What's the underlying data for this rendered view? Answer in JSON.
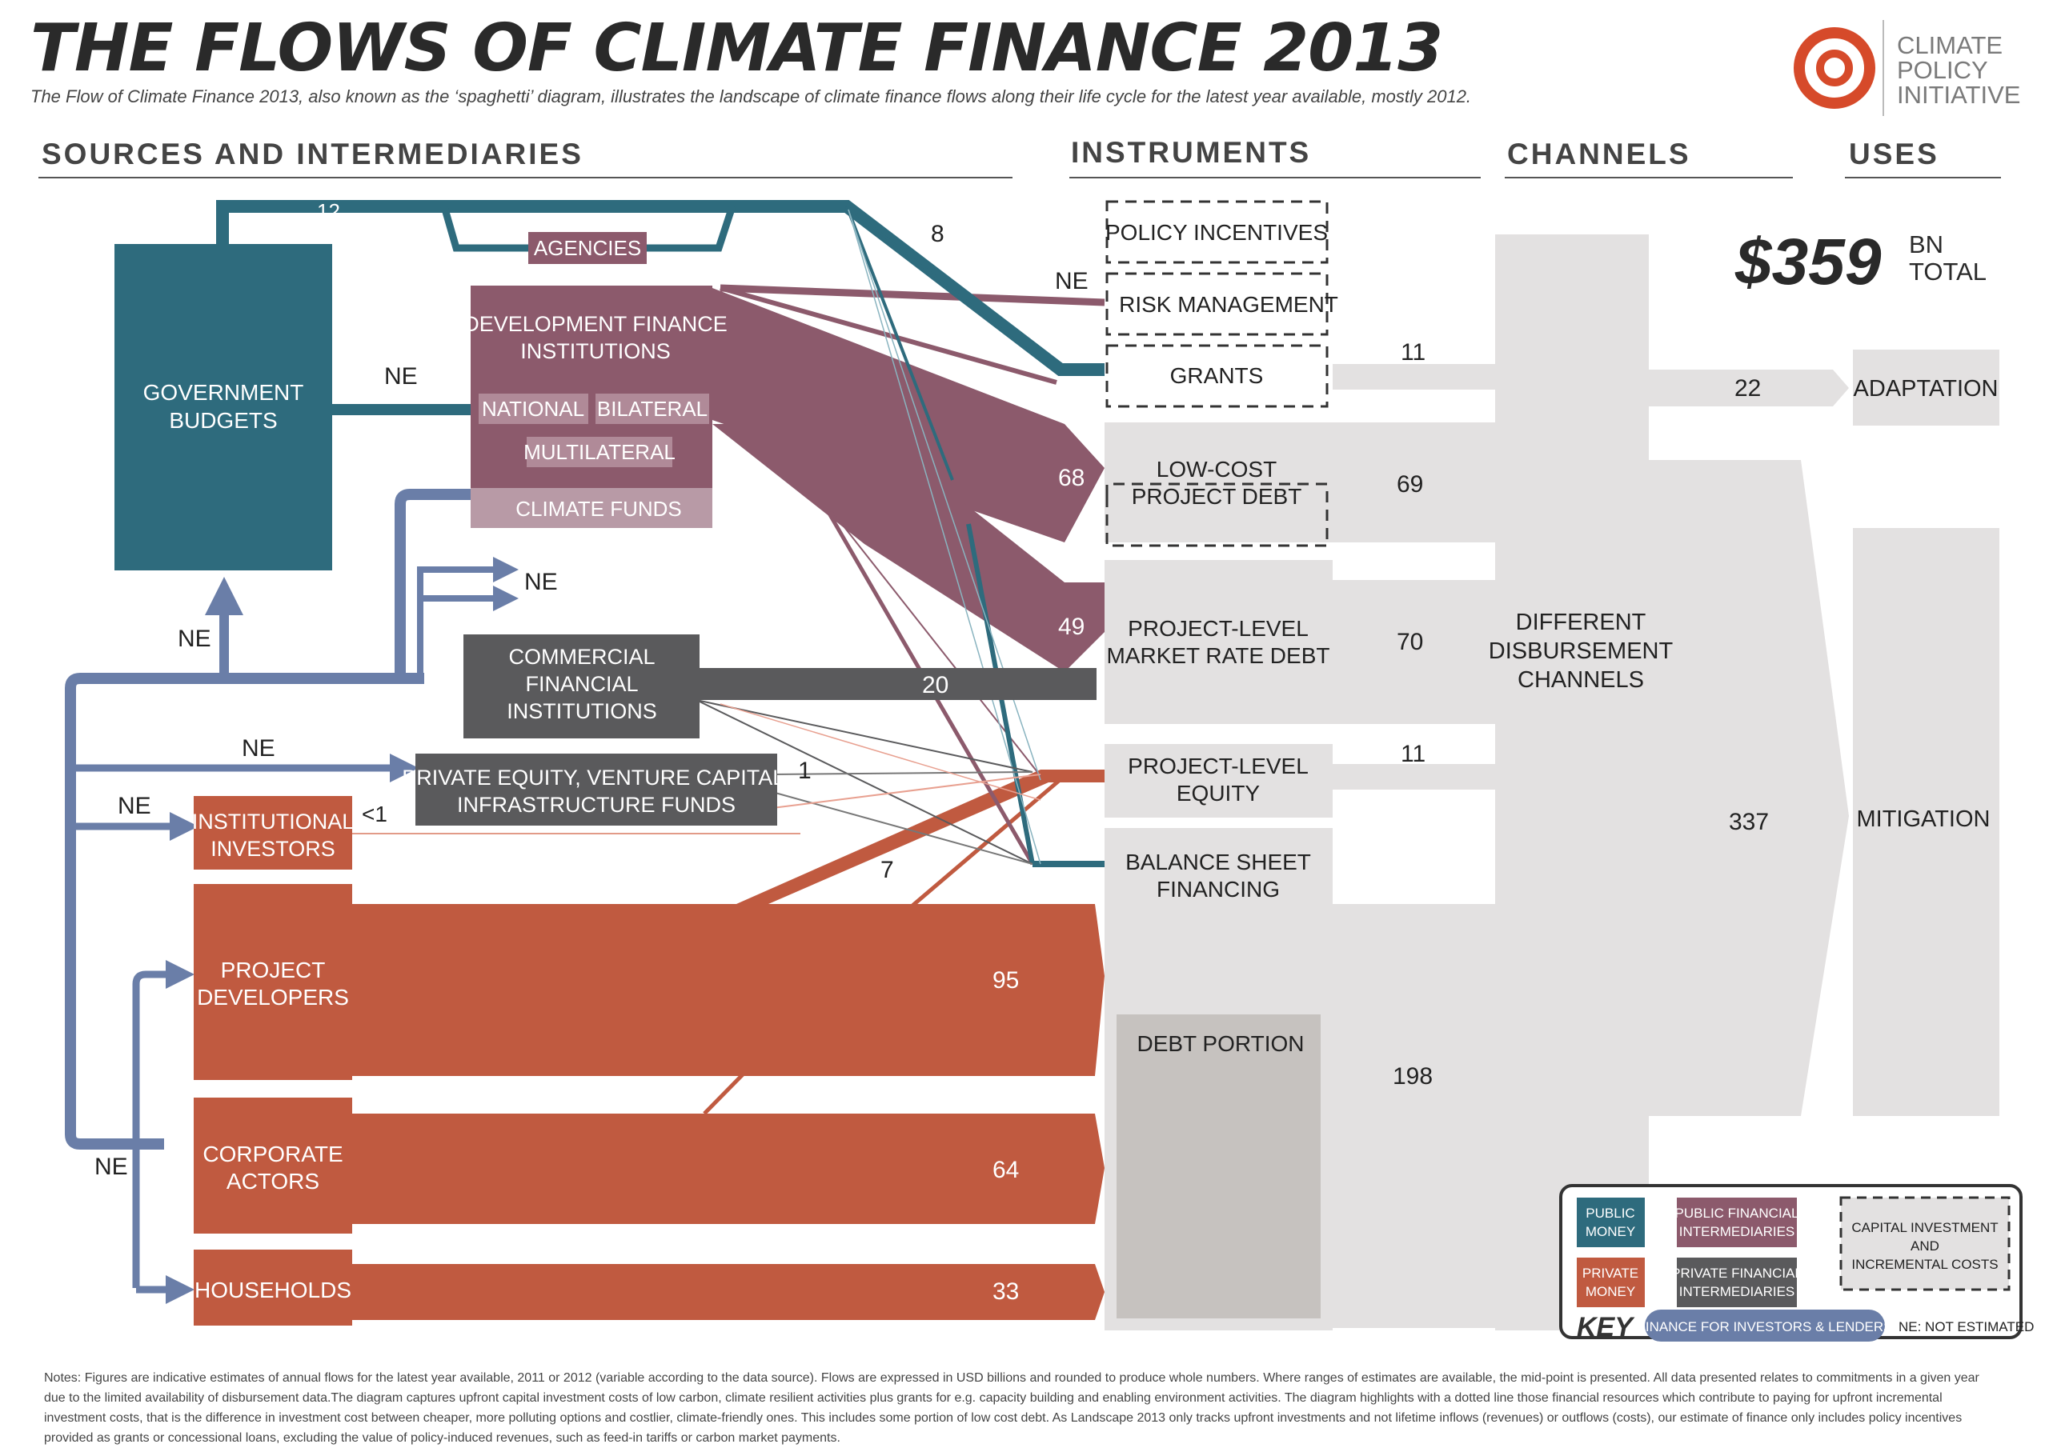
{
  "header": {
    "title": "THE FLOWS OF CLIMATE FINANCE 2013",
    "subtitle": "The Flow of Climate Finance 2013, also known as the ‘spaghetti’ diagram, illustrates the landscape of climate finance flows along their life cycle for the latest year available, mostly 2012.",
    "logo_text": [
      "CLIMATE",
      "POLICY",
      "INITIATIVE"
    ]
  },
  "sections": {
    "sources": "SOURCES AND INTERMEDIARIES",
    "instruments": "INSTRUMENTS",
    "channels": "CHANNELS",
    "uses": "USES"
  },
  "total": {
    "value": "$359",
    "unit_line1": "BN",
    "unit_line2": "TOTAL"
  },
  "nodes": {
    "government_budgets": [
      "GOVERNMENT",
      "BUDGETS"
    ],
    "agencies": "AGENCIES",
    "dfi": [
      "DEVELOPMENT FINANCE",
      "INSTITUTIONS"
    ],
    "national": "NATIONAL",
    "bilateral": "BILATERAL",
    "multilateral": "MULTILATERAL",
    "climate_funds": "CLIMATE FUNDS",
    "commercial_fi": [
      "COMMERCIAL",
      "FINANCIAL",
      "INSTITUTIONS"
    ],
    "private_equity": [
      "PRIVATE EQUITY, VENTURE CAPITAL,",
      "INFRASTRUCTURE FUNDS"
    ],
    "institutional_investors": [
      "INSTITUTIONAL",
      "INVESTORS"
    ],
    "project_developers": [
      "PROJECT",
      "DEVELOPERS"
    ],
    "corporate_actors": [
      "CORPORATE",
      "ACTORS"
    ],
    "households": "HOUSEHOLDS"
  },
  "instruments": {
    "policy_incentives": "POLICY INCENTIVES",
    "risk_management": "RISK MANAGEMENT",
    "grants": "GRANTS",
    "low_cost_debt": [
      "LOW-COST",
      "PROJECT DEBT"
    ],
    "market_rate_debt": [
      "PROJECT-LEVEL",
      "MARKET RATE DEBT"
    ],
    "equity": [
      "PROJECT-LEVEL",
      "EQUITY"
    ],
    "balance_sheet": [
      "BALANCE SHEET",
      "FINANCING"
    ],
    "debt_portion": "DEBT PORTION"
  },
  "channels": {
    "different": [
      "DIFFERENT",
      "DISBURSEMENT",
      "CHANNELS"
    ]
  },
  "uses": {
    "adaptation": "ADAPTATION",
    "mitigation": "MITIGATION"
  },
  "flow_labels": {
    "gov_to_agencies": "12",
    "public_to_grants": "8",
    "risk_ne": "NE",
    "gov_to_dfi": "NE",
    "dfi_to_lowcost": "68",
    "dfi_to_market": "49",
    "to_commercial": "NE",
    "commercial_out": "20",
    "gov_ne": "NE",
    "to_private_equity": "NE",
    "to_institutional": "NE",
    "private_equity_out": "1",
    "institutional_out": "<1",
    "to_equity": "7",
    "households_ne": "NE",
    "project_developers_out": "95",
    "corporate_out": "64",
    "households_out": "33",
    "grants_channel": "11",
    "lowcost_channel": "69",
    "market_channel": "70",
    "equity_channel": "11",
    "balance_channel": "198",
    "to_adaptation": "22",
    "to_mitigation": "337"
  },
  "key": {
    "public_money": [
      "PUBLIC",
      "MONEY"
    ],
    "public_intermediaries": [
      "PUBLIC FINANCIAL",
      "INTERMEDIARIES"
    ],
    "private_money": [
      "PRIVATE",
      "MONEY"
    ],
    "private_intermediaries": [
      "PRIVATE FINANCIAL",
      "INTERMEDIARIES"
    ],
    "capital_costs": [
      "CAPITAL INVESTMENT",
      "AND",
      "INCREMENTAL COSTS"
    ],
    "key_label": "KEY",
    "investors_lenders": "FINANCE FOR INVESTORS & LENDERS",
    "ne_note": "NE: NOT ESTIMATED"
  },
  "colors": {
    "public_money": "#2e6b7d",
    "public_intermediary": "#8c5a6c",
    "private_money": "#c05a40",
    "private_intermediary": "#5a5a5c",
    "investors_lenders": "#6a7ea8",
    "channel_gray": "#e3e1e1",
    "debt_portion": "#c6c2bf"
  },
  "notes": "Notes: Figures are indicative estimates of annual flows for the latest year available, 2011 or 2012 (variable according to the data source). Flows are expressed in USD billions and rounded to produce whole numbers. Where ranges of estimates are available, the mid-point is presented. All data presented relates to commitments in a given year due to the limited availability of disbursement data.The diagram captures upfront capital investment costs of low carbon, climate resilient activities plus grants for e.g. capacity building and enabling environment activities. The diagram highlights with a dotted line those financial resources which contribute to paying for upfront incremental investment costs, that is the difference in investment cost between cheaper, more polluting options and costlier, climate-friendly ones. This includes some portion of low cost debt. As Landscape 2013 only tracks upfront investments and not lifetime inflows (revenues) or outflows (costs), our estimate of finance only includes policy incentives provided as grants or concessional loans, excluding the value of policy-induced revenues, such as feed-in tariffs or carbon market payments."
}
